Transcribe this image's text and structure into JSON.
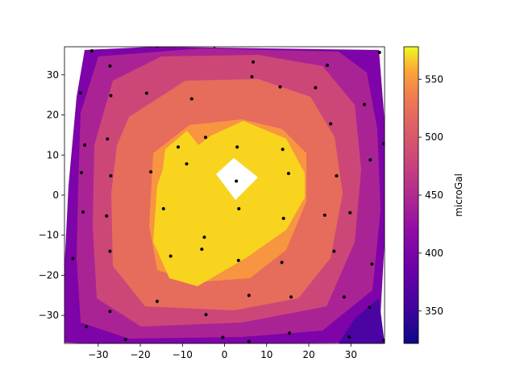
{
  "chart_data": {
    "type": "contour",
    "title": "",
    "xlabel": "",
    "ylabel": "",
    "xlim": [
      -38,
      38
    ],
    "ylim": [
      -37,
      37
    ],
    "xticks": [
      -30,
      -20,
      -10,
      0,
      10,
      20,
      30
    ],
    "yticks": [
      -30,
      -20,
      -10,
      0,
      10,
      20,
      30
    ],
    "colorbar": {
      "label": "microGal",
      "range": [
        322,
        578
      ],
      "ticks": [
        350,
        400,
        450,
        500,
        550
      ]
    },
    "colormap": "plasma",
    "levels": [
      350,
      400,
      450,
      500,
      550
    ],
    "stations": [
      [
        -31.5,
        36.0
      ],
      [
        -27.2,
        32.2
      ],
      [
        -34.2,
        25.5
      ],
      [
        -27.0,
        24.8
      ],
      [
        -33.2,
        12.5
      ],
      [
        -27.8,
        14.0
      ],
      [
        -34.0,
        5.6
      ],
      [
        -27.0,
        4.8
      ],
      [
        -33.6,
        -4.2
      ],
      [
        -28.0,
        -5.2
      ],
      [
        -36.0,
        -15.8
      ],
      [
        -27.2,
        -14.0
      ],
      [
        -27.2,
        -29.0
      ],
      [
        -32.8,
        -32.8
      ],
      [
        -23.5,
        -36.0
      ],
      [
        -18.5,
        25.4
      ],
      [
        -16.0,
        37.2
      ],
      [
        -17.5,
        5.8
      ],
      [
        -14.5,
        -3.4
      ],
      [
        -12.8,
        -15.2
      ],
      [
        -16.0,
        -26.5
      ],
      [
        -11.0,
        12.0
      ],
      [
        -9.0,
        7.8
      ],
      [
        -7.8,
        24.0
      ],
      [
        -4.5,
        14.4
      ],
      [
        -4.8,
        -10.5
      ],
      [
        -5.4,
        -13.5
      ],
      [
        -4.4,
        -29.8
      ],
      [
        -2.4,
        37.2
      ],
      [
        -0.4,
        -35.5
      ],
      [
        2.8,
        3.5
      ],
      [
        3.0,
        12.0
      ],
      [
        3.4,
        -3.4
      ],
      [
        3.3,
        -16.3
      ],
      [
        5.8,
        -25.0
      ],
      [
        5.8,
        -36.5
      ],
      [
        6.8,
        33.2
      ],
      [
        6.5,
        29.5
      ],
      [
        13.2,
        27.0
      ],
      [
        13.8,
        11.4
      ],
      [
        14.0,
        -5.8
      ],
      [
        13.6,
        -16.8
      ],
      [
        15.2,
        5.4
      ],
      [
        15.8,
        -25.4
      ],
      [
        15.4,
        -34.4
      ],
      [
        15.6,
        37.5
      ],
      [
        21.6,
        26.8
      ],
      [
        23.8,
        -5.0
      ],
      [
        25.2,
        17.8
      ],
      [
        26.0,
        -14.0
      ],
      [
        24.4,
        32.4
      ],
      [
        26.6,
        4.8
      ],
      [
        28.4,
        -25.4
      ],
      [
        29.8,
        -4.4
      ],
      [
        29.6,
        -35.4
      ],
      [
        33.2,
        22.6
      ],
      [
        34.6,
        8.8
      ],
      [
        35.0,
        -17.2
      ],
      [
        34.4,
        -28.0
      ],
      [
        36.8,
        35.6
      ],
      [
        37.8,
        12.8
      ],
      [
        37.8,
        -36.2
      ]
    ]
  },
  "colors": {
    "band_1": "#4b03a1",
    "band_2": "#7e03a8",
    "band_3": "#aa2395",
    "band_4": "#cc4778",
    "band_5": "#e66c5c",
    "band_6": "#f89540",
    "band_7": "#f8d41f",
    "missing": "#ffffff",
    "station": "#000000"
  }
}
